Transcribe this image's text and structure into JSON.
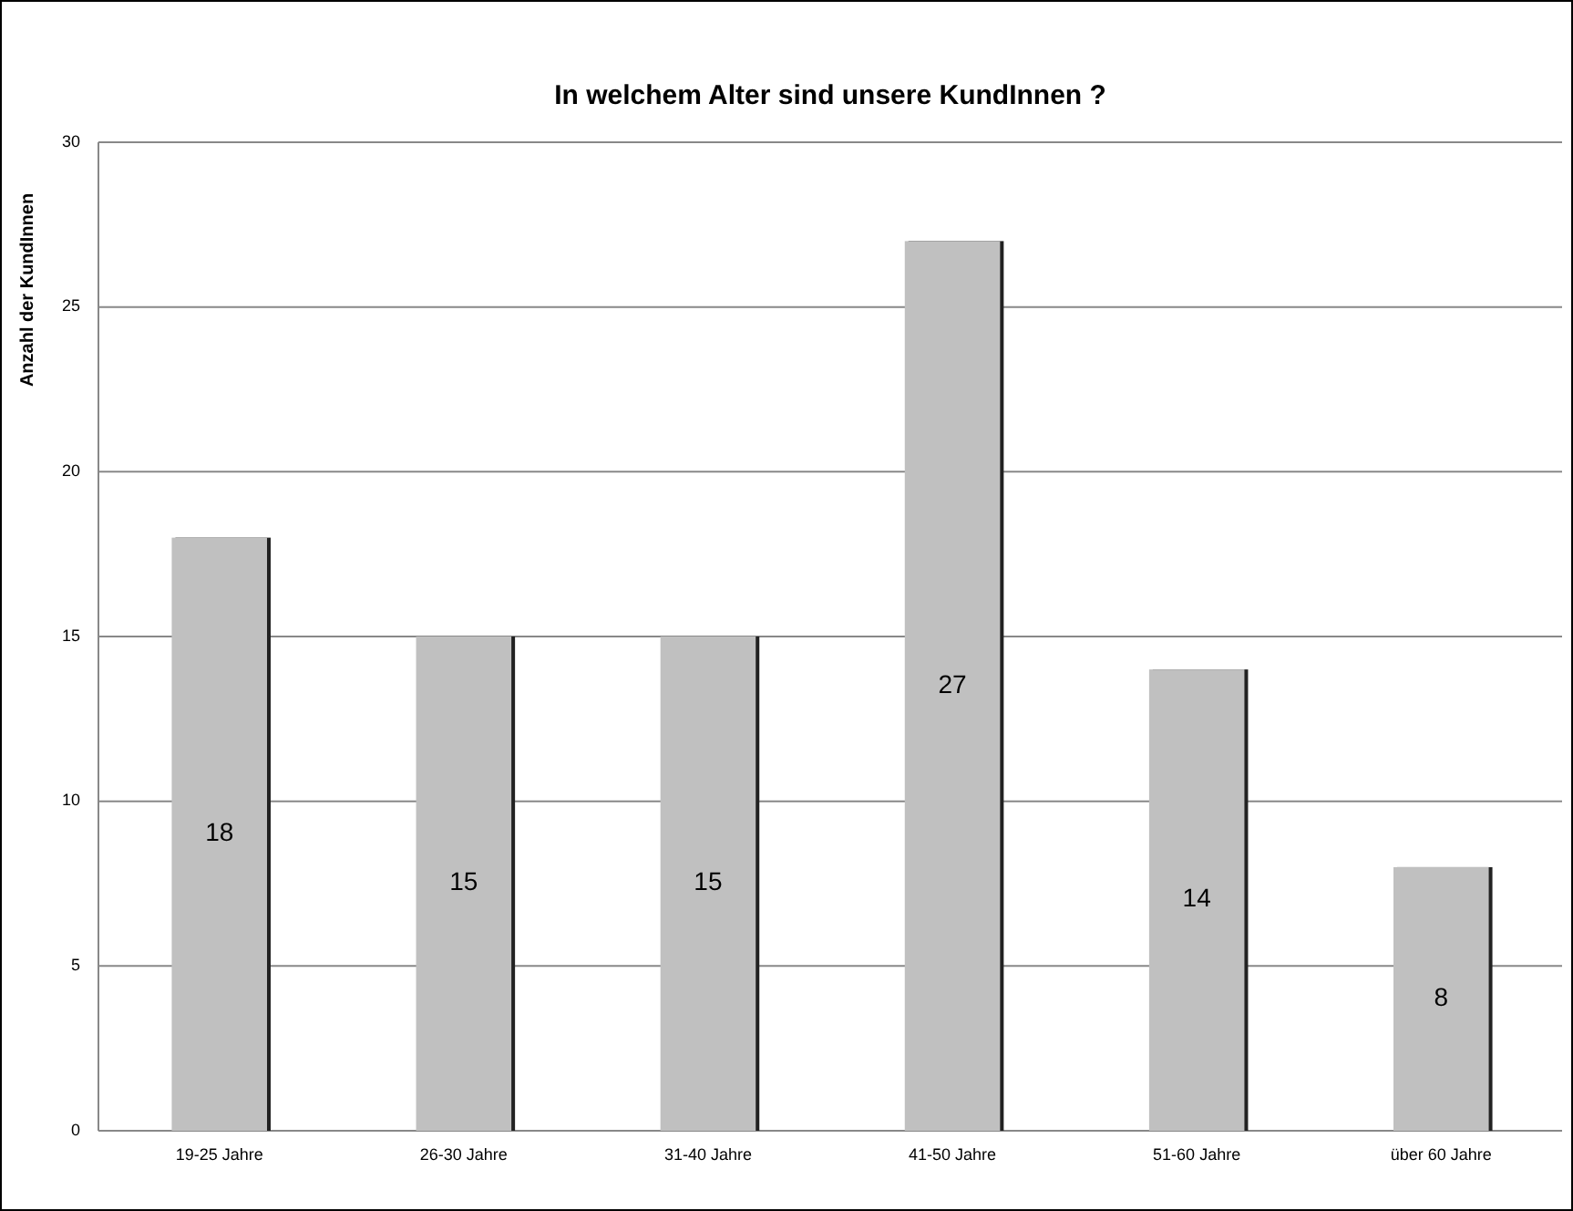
{
  "chart_data": {
    "type": "bar",
    "title": "In welchem Alter sind unsere KundInnen ?",
    "ylabel": "Anzahl der KundInnen",
    "categories": [
      "19-25 Jahre",
      "26-30 Jahre",
      "31-40 Jahre",
      "41-50 Jahre",
      "51-60 Jahre",
      "über 60 Jahre"
    ],
    "values": [
      18,
      15,
      15,
      27,
      14,
      8
    ],
    "color": "#c0c0c0",
    "ylim": [
      0,
      30
    ],
    "yticks": [
      0,
      5,
      10,
      15,
      20,
      25,
      30
    ],
    "grid": "y",
    "data_labels": true
  }
}
